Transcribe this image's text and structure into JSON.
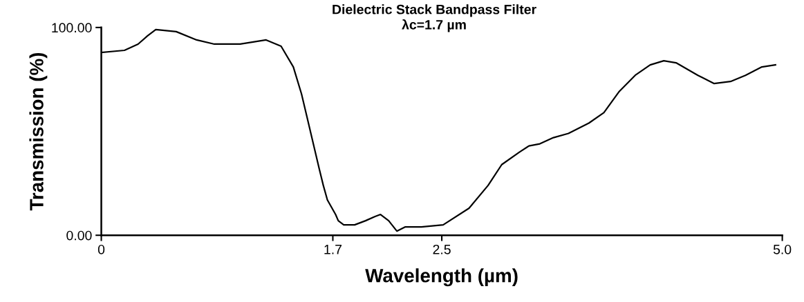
{
  "chart_data": {
    "type": "line",
    "title": "Dielectric Stack Bandpass Filter",
    "subtitle": "λc=1.7 µm",
    "xlabel": "Wavelength (µm)",
    "ylabel": "Transmission (%)",
    "x": [
      0,
      0.17,
      0.27,
      0.34,
      0.4,
      0.55,
      0.7,
      0.83,
      1.02,
      1.21,
      1.32,
      1.41,
      1.47,
      1.51,
      1.6,
      1.63,
      1.66,
      1.72,
      1.74,
      1.78,
      1.86,
      1.94,
      2.01,
      2.05,
      2.11,
      2.17,
      2.23,
      2.35,
      2.51,
      2.7,
      2.84,
      2.94,
      3.07,
      3.14,
      3.22,
      3.32,
      3.43,
      3.58,
      3.69,
      3.8,
      3.92,
      4.03,
      4.13,
      4.22,
      4.38,
      4.5,
      4.62,
      4.73,
      4.85,
      4.95
    ],
    "series": [
      {
        "color": "#000000",
        "values": [
          88,
          89,
          92,
          96,
          99,
          98,
          94,
          92,
          92,
          94,
          91,
          81,
          68,
          57,
          32,
          24,
          17,
          10,
          7,
          5,
          5,
          7,
          9,
          10,
          7,
          2,
          4,
          4,
          5,
          13,
          24,
          34,
          40,
          43,
          44,
          47,
          49,
          54,
          59,
          69,
          77,
          82,
          84,
          83,
          77,
          73,
          74,
          77,
          81,
          82
        ]
      }
    ],
    "xlim": [
      0,
      5
    ],
    "xticks": [
      0,
      1.7,
      2.5,
      {
        "value": 5,
        "label": "5.0"
      }
    ],
    "ylim": [
      0,
      100
    ],
    "yticks": [
      {
        "value": 0,
        "label": "0.00"
      },
      {
        "value": 100,
        "label": "100.00"
      }
    ],
    "grid": false,
    "marker": "none",
    "line_style": "solid"
  }
}
